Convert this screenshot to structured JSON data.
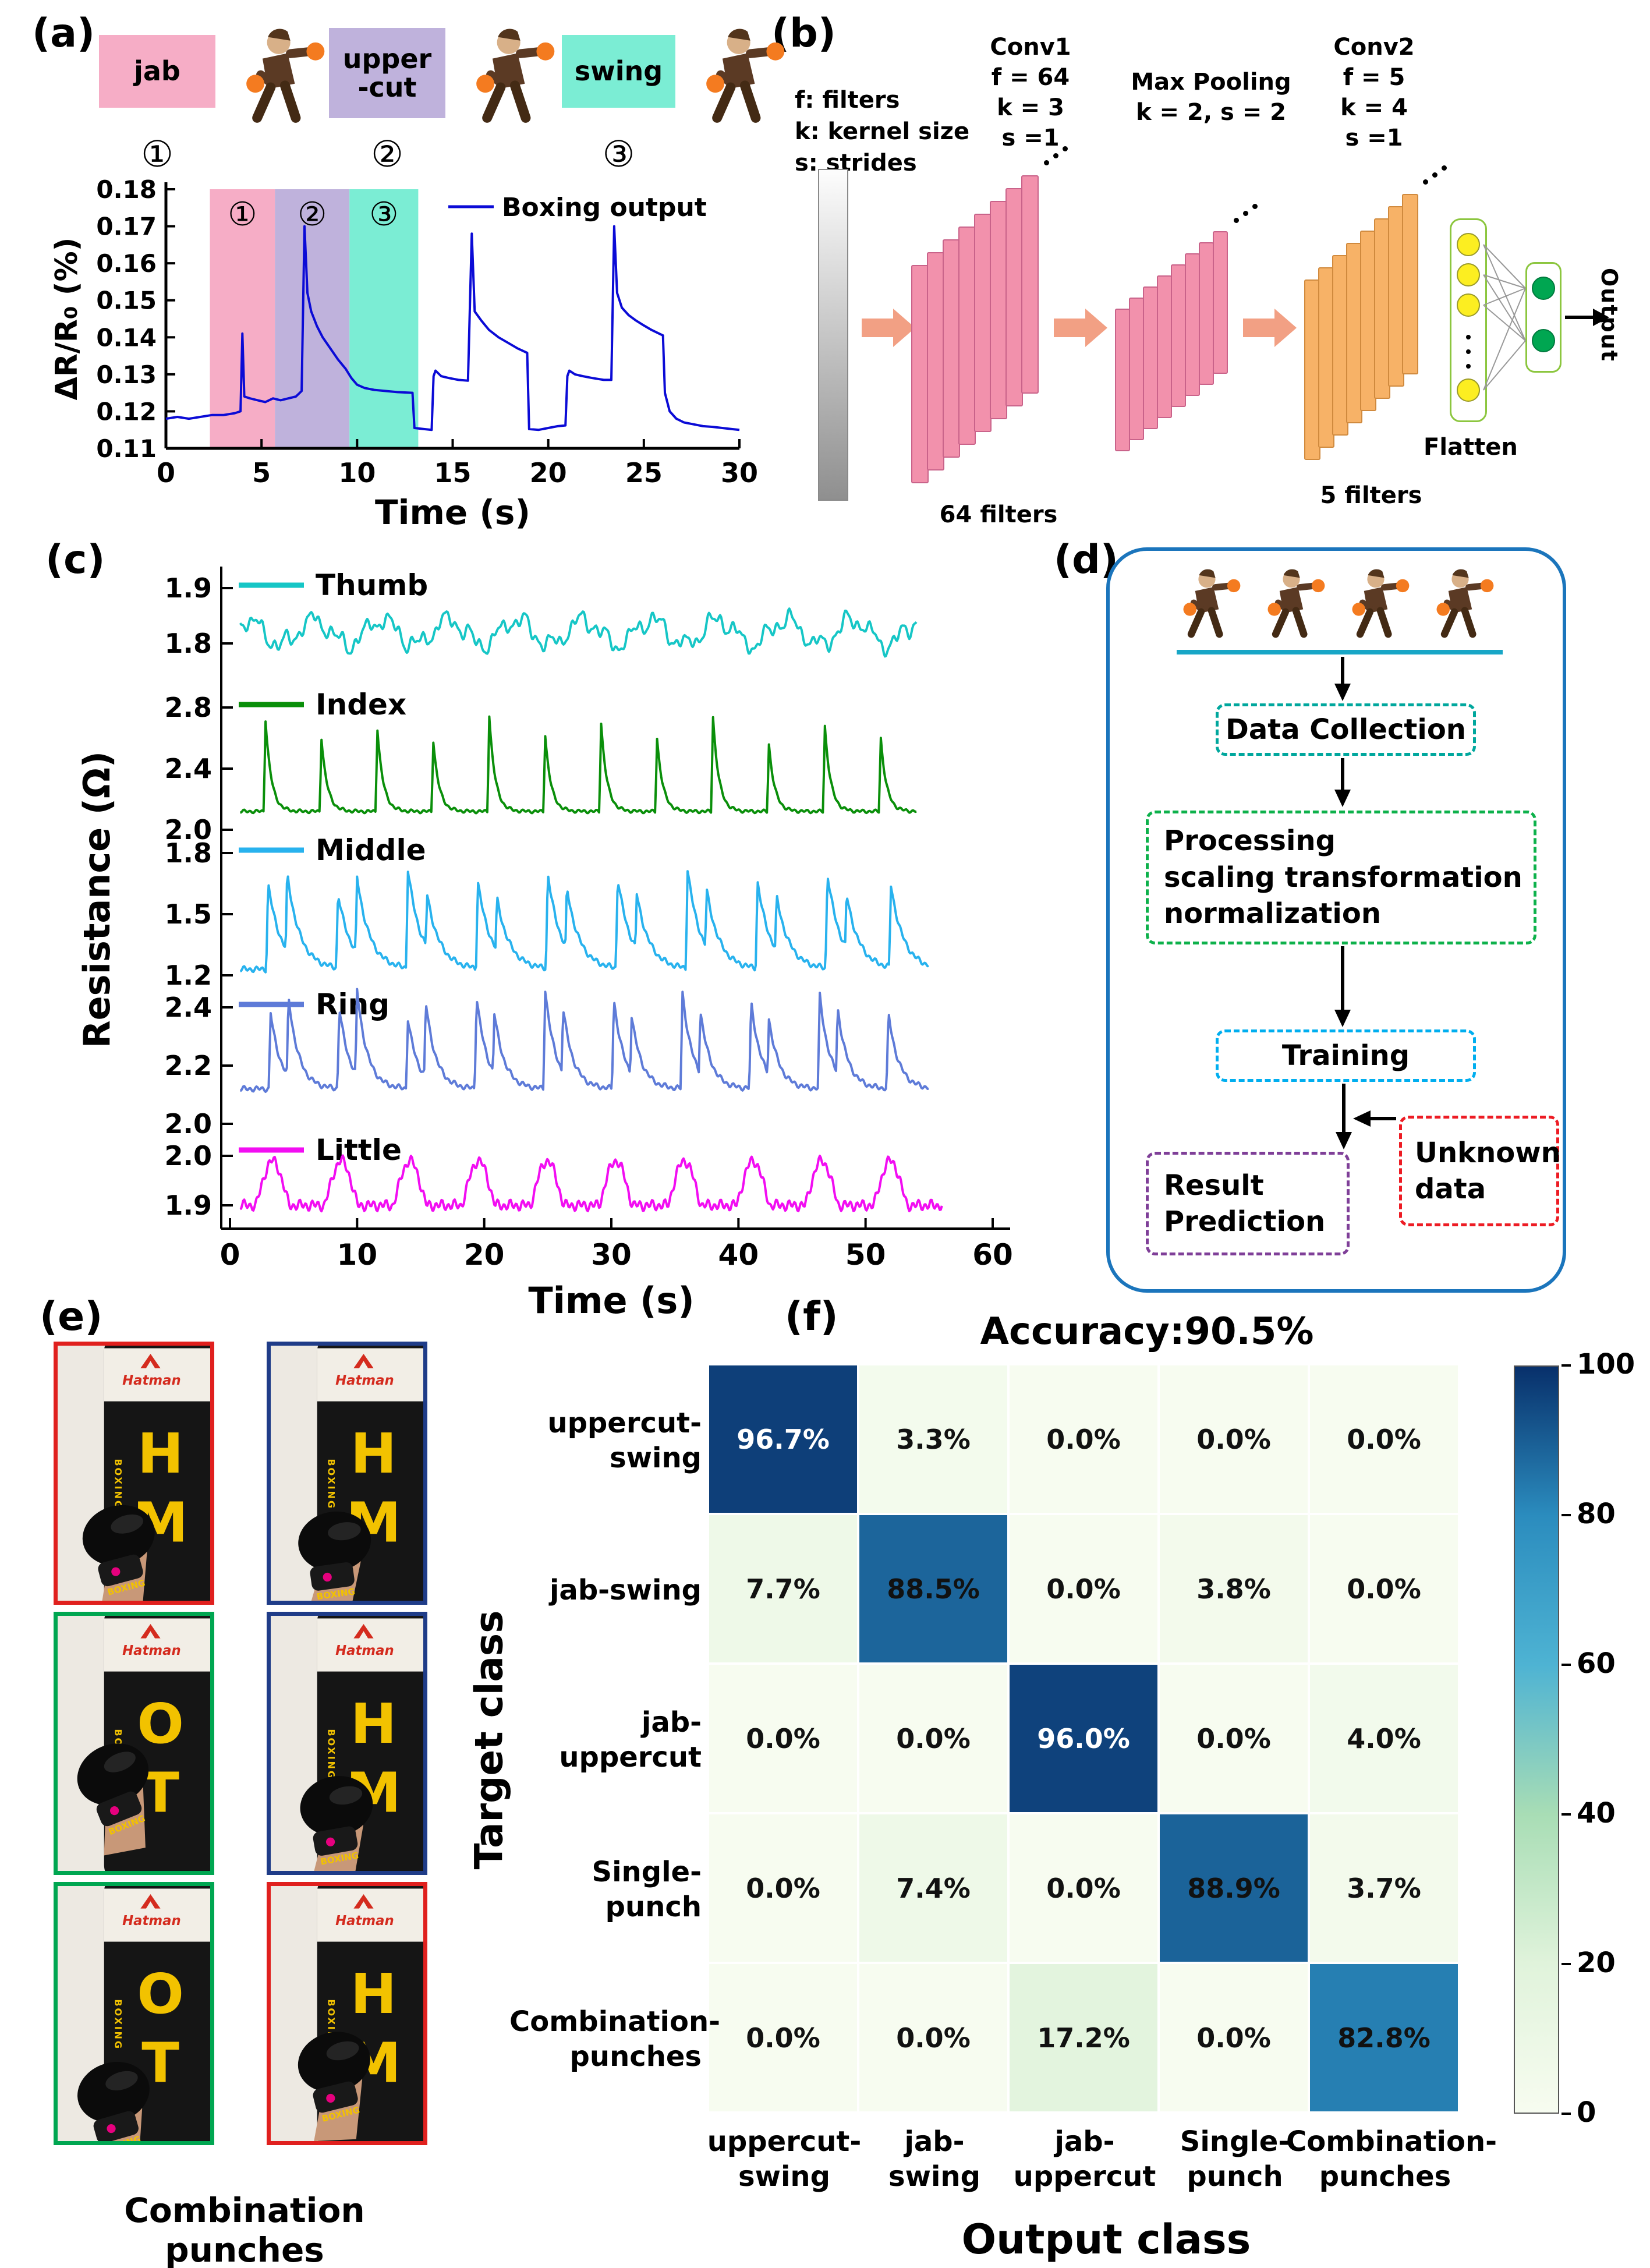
{
  "labels": {
    "a": "(a)",
    "b": "(b)",
    "c": "(c)",
    "d": "(d)",
    "e": "(e)",
    "f": "(f)"
  },
  "panel_a": {
    "punch_types": [
      {
        "name": "jab",
        "badge": "①",
        "color": "#F6ADC6"
      },
      {
        "name": "upper\n-cut",
        "badge": "②",
        "color": "#BFB2DC"
      },
      {
        "name": "swing",
        "badge": "③",
        "color": "#7BEDD4"
      }
    ]
  },
  "panel_b": {
    "notes": [
      "f: filters",
      "k: kernel size",
      "s: strides"
    ],
    "conv1_title": "Conv1",
    "conv1_lines": [
      "f = 64",
      "k = 3",
      "s =1"
    ],
    "conv1_caption": "64  filters",
    "pool_title": "Max Pooling",
    "pool_lines": [
      "k = 2, s = 2"
    ],
    "conv2_title": "Conv2",
    "conv2_lines": [
      "f = 5",
      "k = 4",
      "s =1"
    ],
    "conv2_caption": "5  filters",
    "flatten_label": "Flatten",
    "output_label": "Output"
  },
  "panel_d": {
    "data_collection": "Data Collection",
    "processing_lines": [
      "Processing",
      "scaling transformation",
      "normalization"
    ],
    "training": "Training",
    "result_lines": [
      "Result",
      "Prediction"
    ],
    "unknown_lines": [
      "Unknown",
      "data"
    ],
    "colors": {
      "container": "#1B75BC",
      "collection": "#00A79D",
      "processing": "#0DB14B",
      "training": "#00AEEF",
      "result": "#7F3F98",
      "unknown": "#ED1C24"
    }
  },
  "panel_e": {
    "caption": "Combination punches",
    "brand": "Hatman",
    "glove_text": "BOXING",
    "photos": [
      {
        "frame": "#E0201E",
        "letters": "HM"
      },
      {
        "frame": "#1F3C88",
        "letters": "HM"
      },
      {
        "frame": "#00A651",
        "letters": "OT"
      },
      {
        "frame": "#1F3C88",
        "letters": "HM"
      },
      {
        "frame": "#00A651",
        "letters": "OT"
      },
      {
        "frame": "#E0201E",
        "letters": "HM"
      }
    ]
  },
  "chart_data": [
    {
      "id": "panel_a_boxing_output",
      "type": "line",
      "xlabel": "Time (s)",
      "ylabel": "ΔR/R₀ (%)",
      "xlim": [
        0,
        30
      ],
      "ylim": [
        0.11,
        0.18
      ],
      "x_ticks": [
        0,
        5,
        10,
        15,
        20,
        25,
        30
      ],
      "y_ticks": [
        0.11,
        0.12,
        0.13,
        0.14,
        0.15,
        0.16,
        0.17,
        0.18
      ],
      "legend": "Boxing output",
      "line_color": "#0B0BD6",
      "regions": [
        {
          "badge": "①",
          "x0": 2.3,
          "x1": 5.7,
          "color": "#F6ADC6"
        },
        {
          "badge": "②",
          "x0": 5.7,
          "x1": 9.6,
          "color": "#BFB2DC"
        },
        {
          "badge": "③",
          "x0": 9.6,
          "x1": 13.2,
          "color": "#7BEDD4"
        }
      ],
      "points": [
        [
          0,
          0.118
        ],
        [
          0.6,
          0.1185
        ],
        [
          1.2,
          0.118
        ],
        [
          1.8,
          0.1185
        ],
        [
          2.4,
          0.119
        ],
        [
          3,
          0.119
        ],
        [
          3.6,
          0.1195
        ],
        [
          3.9,
          0.12
        ],
        [
          4,
          0.141
        ],
        [
          4.1,
          0.124
        ],
        [
          4.4,
          0.1235
        ],
        [
          4.8,
          0.123
        ],
        [
          5.2,
          0.1225
        ],
        [
          5.6,
          0.1235
        ],
        [
          6,
          0.123
        ],
        [
          6.4,
          0.1235
        ],
        [
          6.8,
          0.124
        ],
        [
          7.1,
          0.1255
        ],
        [
          7.25,
          0.17
        ],
        [
          7.4,
          0.152
        ],
        [
          7.6,
          0.147
        ],
        [
          7.9,
          0.143
        ],
        [
          8.2,
          0.14
        ],
        [
          8.6,
          0.137
        ],
        [
          9,
          0.134
        ],
        [
          9.4,
          0.1315
        ],
        [
          9.7,
          0.129
        ],
        [
          10,
          0.1272
        ],
        [
          10.4,
          0.1263
        ],
        [
          10.9,
          0.1258
        ],
        [
          11.5,
          0.1255
        ],
        [
          12.1,
          0.1252
        ],
        [
          12.9,
          0.125
        ],
        [
          13,
          0.1155
        ],
        [
          13.5,
          0.1152
        ],
        [
          13.9,
          0.115
        ],
        [
          14,
          0.1295
        ],
        [
          14.1,
          0.131
        ],
        [
          14.4,
          0.1295
        ],
        [
          14.8,
          0.129
        ],
        [
          15.3,
          0.1285
        ],
        [
          15.8,
          0.1283
        ],
        [
          16,
          0.168
        ],
        [
          16.15,
          0.147
        ],
        [
          16.5,
          0.1445
        ],
        [
          16.9,
          0.142
        ],
        [
          17.4,
          0.14
        ],
        [
          17.9,
          0.1385
        ],
        [
          18.4,
          0.137
        ],
        [
          18.9,
          0.1358
        ],
        [
          19,
          0.1152
        ],
        [
          19.5,
          0.115
        ],
        [
          20,
          0.1155
        ],
        [
          20.5,
          0.116
        ],
        [
          20.9,
          0.1162
        ],
        [
          21,
          0.1295
        ],
        [
          21.1,
          0.131
        ],
        [
          21.4,
          0.13
        ],
        [
          21.8,
          0.1295
        ],
        [
          22.3,
          0.129
        ],
        [
          22.9,
          0.1285
        ],
        [
          23.3,
          0.1285
        ],
        [
          23.45,
          0.17
        ],
        [
          23.6,
          0.152
        ],
        [
          23.85,
          0.148
        ],
        [
          24.2,
          0.146
        ],
        [
          24.6,
          0.1445
        ],
        [
          25,
          0.1432
        ],
        [
          25.4,
          0.142
        ],
        [
          25.8,
          0.141
        ],
        [
          26,
          0.1405
        ],
        [
          26.1,
          0.125
        ],
        [
          26.35,
          0.12
        ],
        [
          26.7,
          0.118
        ],
        [
          27.1,
          0.117
        ],
        [
          27.6,
          0.1165
        ],
        [
          28.1,
          0.116
        ],
        [
          28.6,
          0.1158
        ],
        [
          29.1,
          0.1155
        ],
        [
          29.6,
          0.1152
        ],
        [
          30,
          0.115
        ]
      ]
    },
    {
      "id": "panel_c_finger_resistance",
      "type": "line",
      "xlabel": "Time (s)",
      "ylabel": "Resistance (Ω)",
      "xlim": [
        0,
        60
      ],
      "x_ticks": [
        0,
        10,
        20,
        30,
        40,
        50,
        60
      ],
      "traces": [
        {
          "name": "Thumb",
          "color": "#16C6C6",
          "y_ticks": [
            1.9,
            1.8
          ],
          "waveform": "wavy",
          "base": 1.82,
          "t_end": 54,
          "components": [
            [
              0.022,
              5.3,
              0
            ],
            [
              0.012,
              2.1,
              1.2
            ],
            [
              0.008,
              0.9,
              2.4
            ]
          ]
        },
        {
          "name": "Index",
          "color": "#0A8F0A",
          "y_ticks": [
            2.8,
            2.4,
            2.0
          ],
          "waveform": "spikes",
          "base": 2.12,
          "noise": 0.012,
          "tau": 0.45,
          "t_end": 54,
          "spike_times": [
            2.8,
            7.2,
            11.6,
            16,
            20.4,
            24.8,
            29.2,
            33.6,
            38,
            42.4,
            46.8,
            51.2
          ],
          "spike_peaks": [
            2.72,
            2.6,
            2.66,
            2.58,
            2.75,
            2.62,
            2.7,
            2.6,
            2.74,
            2.56,
            2.68,
            2.6
          ]
        },
        {
          "name": "Middle",
          "color": "#28B2EE",
          "y_ticks": [
            1.8,
            1.5,
            1.2
          ],
          "waveform": "spikes",
          "base": 1.23,
          "noise": 0.015,
          "tau": 1.0,
          "t_end": 55,
          "spike_times": [
            3,
            4.5,
            8.5,
            10,
            14,
            15.5,
            19.5,
            21,
            25,
            26.5,
            30.5,
            32,
            36,
            37.5,
            41.5,
            43,
            47,
            48.5,
            52
          ],
          "spike_peaks": [
            1.65,
            1.7,
            1.6,
            1.68,
            1.72,
            1.6,
            1.66,
            1.58,
            1.7,
            1.63,
            1.68,
            1.6,
            1.72,
            1.62,
            1.66,
            1.59,
            1.7,
            1.6,
            1.64
          ]
        },
        {
          "name": "Ring",
          "color": "#5E7BD8",
          "y_ticks": [
            2.4,
            2.2,
            2.0
          ],
          "waveform": "spikes",
          "base": 2.12,
          "noise": 0.01,
          "tau": 0.8,
          "t_end": 55,
          "spike_times": [
            3.2,
            4.6,
            8.6,
            10,
            14,
            15.4,
            19.4,
            20.8,
            24.8,
            26.2,
            30.2,
            31.6,
            35.6,
            37,
            41,
            42.4,
            46.4,
            47.8,
            51.8
          ],
          "spike_peaks": [
            2.38,
            2.44,
            2.4,
            2.46,
            2.36,
            2.42,
            2.44,
            2.38,
            2.46,
            2.4,
            2.43,
            2.37,
            2.45,
            2.39,
            2.42,
            2.36,
            2.44,
            2.4,
            2.38
          ]
        },
        {
          "name": "Little",
          "color": "#F20DF2",
          "y_ticks": [
            2.0,
            1.9
          ],
          "waveform": "bumps",
          "base": 1.9,
          "amp": 0.09,
          "period": 5.4,
          "noise": 0.012,
          "t_end": 56
        }
      ]
    },
    {
      "id": "panel_f_confusion_matrix",
      "type": "heatmap",
      "title": "Accuracy:90.5%",
      "xlabel": "Output class",
      "ylabel": "Target class",
      "classes": [
        "uppercut-swing",
        "jab-swing",
        "jab-uppercut",
        "Single-punch",
        "Combination-punches"
      ],
      "row_label_lines": [
        [
          "uppercut-",
          "swing"
        ],
        [
          "jab-swing"
        ],
        [
          "jab-",
          "uppercut"
        ],
        [
          "Single-",
          "punch"
        ],
        [
          "Combination-",
          "punches"
        ]
      ],
      "col_label_lines": [
        [
          "uppercut-",
          "swing"
        ],
        [
          "jab-",
          "swing"
        ],
        [
          "jab-",
          "uppercut"
        ],
        [
          "Single-",
          "punch"
        ],
        [
          "Combination-",
          "punches"
        ]
      ],
      "values": [
        [
          96.7,
          3.3,
          0.0,
          0.0,
          0.0
        ],
        [
          7.7,
          88.5,
          0.0,
          3.8,
          0.0
        ],
        [
          0.0,
          0.0,
          96.0,
          0.0,
          4.0
        ],
        [
          0.0,
          7.4,
          0.0,
          88.9,
          3.7
        ],
        [
          0.0,
          0.0,
          17.2,
          0.0,
          82.8
        ]
      ],
      "value_format": "percent",
      "colorbar": {
        "min": 0,
        "max": 100,
        "ticks": [
          0,
          20,
          40,
          60,
          80,
          100
        ],
        "stops": [
          [
            0,
            "#F7FCF0"
          ],
          [
            20,
            "#E0F3DB"
          ],
          [
            40,
            "#A8DDB5"
          ],
          [
            60,
            "#4EB3D3"
          ],
          [
            80,
            "#2B8CBE"
          ],
          [
            100,
            "#08306B"
          ]
        ]
      }
    }
  ]
}
